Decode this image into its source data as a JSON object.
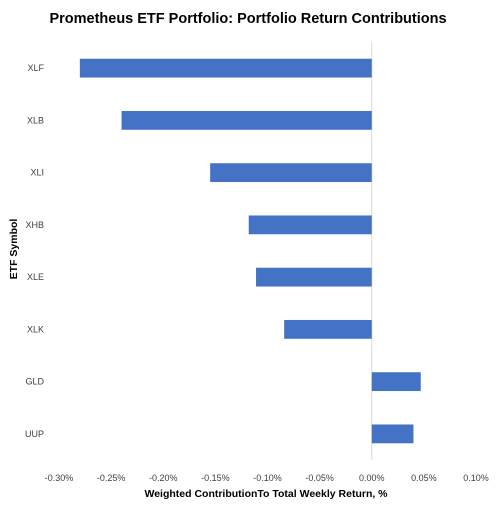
{
  "chart_data": {
    "type": "bar",
    "orientation": "horizontal",
    "title": "Prometheus ETF Portfolio: Portfolio Return Contributions",
    "xlabel": "Weighted ContributionTo Total Weekly Return, %",
    "ylabel": "ETF Symbol",
    "categories": [
      "XLF",
      "XLB",
      "XLI",
      "XHB",
      "XLE",
      "XLK",
      "GLD",
      "UUP"
    ],
    "values": [
      -0.28,
      -0.24,
      -0.155,
      -0.118,
      -0.111,
      -0.084,
      0.047,
      0.04
    ],
    "xlim": [
      -0.3,
      0.1
    ],
    "xticks": [
      -0.3,
      -0.25,
      -0.2,
      -0.15,
      -0.1,
      -0.05,
      0.0,
      0.05,
      0.1
    ],
    "xtick_labels": [
      "-0.30%",
      "-0.25%",
      "-0.20%",
      "-0.15%",
      "-0.10%",
      "-0.05%",
      "0.00%",
      "0.05%",
      "0.10%"
    ],
    "grid": false,
    "bar_color": "#4472C4",
    "zero_line_color": "#D9D9D9"
  }
}
